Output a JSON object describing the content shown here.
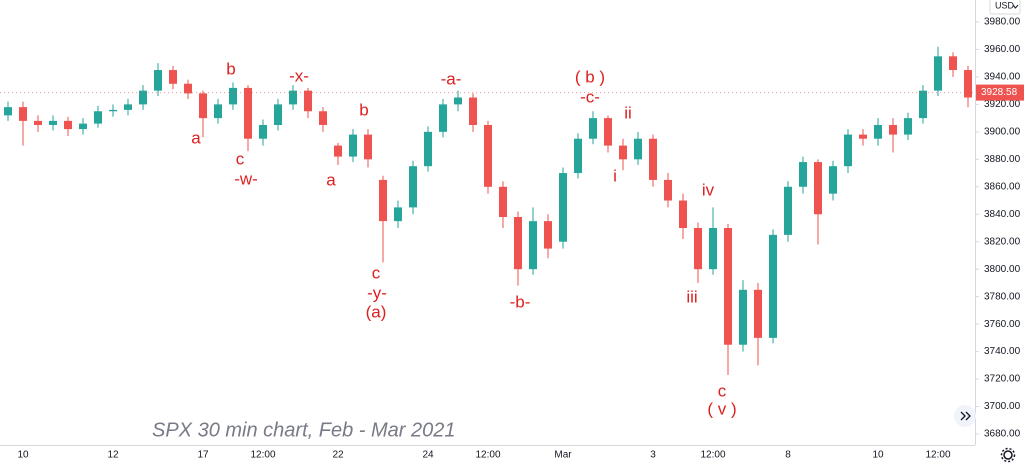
{
  "chart_data": {
    "type": "candlestick",
    "caption": "SPX 30 min chart, Feb - Mar 2021",
    "currency": "USD",
    "last_price": 3928.58,
    "up_color": "#26a69a",
    "down_color": "#ef5350",
    "categories": [
      null,
      "10",
      null,
      null,
      null,
      null,
      null,
      "12",
      null,
      null,
      null,
      null,
      null,
      "17",
      null,
      null,
      null,
      "12:00",
      null,
      null,
      null,
      null,
      "22",
      null,
      null,
      null,
      null,
      null,
      "24",
      null,
      null,
      null,
      "12:00",
      null,
      null,
      null,
      null,
      "Mar",
      null,
      null,
      null,
      null,
      null,
      "3",
      null,
      null,
      null,
      "12:00",
      null,
      null,
      null,
      null,
      "8",
      null,
      null,
      null,
      null,
      null,
      "10",
      null,
      null,
      null,
      "12:00",
      null,
      null
    ],
    "open": [
      3912,
      3918,
      3908,
      3905,
      3908,
      3902,
      3906,
      3915,
      3916,
      3920,
      3930,
      3945,
      3935,
      3928,
      3910,
      3920,
      3932,
      3895,
      3905,
      3920,
      3930,
      3915,
      3890,
      3882,
      3898,
      3865,
      3835,
      3845,
      3875,
      3900,
      3920,
      3925,
      3905,
      3860,
      3838,
      3800,
      3835,
      3820,
      3870,
      3895,
      3910,
      3890,
      3880,
      3895,
      3865,
      3850,
      3830,
      3800,
      3830,
      3745,
      3785,
      3750,
      3825,
      3860,
      3878,
      3855,
      3875,
      3898,
      3895,
      3905,
      3898,
      3910,
      3930,
      3955,
      3945
    ],
    "high": [
      3922,
      3922,
      3912,
      3912,
      3911,
      3910,
      3919,
      3920,
      3924,
      3934,
      3950,
      3948,
      3938,
      3930,
      3924,
      3936,
      3934,
      3909,
      3924,
      3934,
      3932,
      3918,
      3892,
      3902,
      3902,
      3868,
      3850,
      3879,
      3904,
      3924,
      3930,
      3928,
      3908,
      3864,
      3842,
      3845,
      3840,
      3874,
      3899,
      3915,
      3912,
      3895,
      3900,
      3898,
      3870,
      3855,
      3834,
      3845,
      3833,
      3792,
      3790,
      3829,
      3864,
      3882,
      3880,
      3879,
      3902,
      3902,
      3910,
      3910,
      3914,
      3934,
      3962,
      3958,
      3948
    ],
    "low": [
      3908,
      3890,
      3900,
      3901,
      3897,
      3898,
      3903,
      3911,
      3912,
      3916,
      3926,
      3931,
      3924,
      3896,
      3906,
      3916,
      3886,
      3890,
      3901,
      3916,
      3910,
      3900,
      3876,
      3878,
      3874,
      3805,
      3830,
      3840,
      3871,
      3896,
      3915,
      3900,
      3855,
      3830,
      3788,
      3796,
      3808,
      3815,
      3866,
      3891,
      3885,
      3872,
      3876,
      3860,
      3845,
      3822,
      3790,
      3796,
      3723,
      3740,
      3730,
      3746,
      3820,
      3855,
      3818,
      3850,
      3870,
      3890,
      3890,
      3885,
      3894,
      3906,
      3926,
      3940,
      3918
    ],
    "close": [
      3918,
      3908,
      3905,
      3908,
      3902,
      3906,
      3915,
      3916,
      3920,
      3930,
      3945,
      3935,
      3928,
      3910,
      3920,
      3932,
      3895,
      3905,
      3920,
      3930,
      3915,
      3905,
      3882,
      3898,
      3880,
      3835,
      3845,
      3875,
      3900,
      3920,
      3925,
      3905,
      3860,
      3838,
      3800,
      3835,
      3815,
      3870,
      3895,
      3910,
      3890,
      3880,
      3895,
      3865,
      3850,
      3830,
      3800,
      3830,
      3745,
      3785,
      3750,
      3825,
      3860,
      3878,
      3840,
      3875,
      3898,
      3895,
      3905,
      3898,
      3910,
      3930,
      3955,
      3945,
      3925
    ],
    "ylim": [
      3672,
      3996
    ],
    "yticks": [
      {
        "value": 3680,
        "label": "3680.00"
      },
      {
        "value": 3700,
        "label": "3700.00"
      },
      {
        "value": 3720,
        "label": "3720.00"
      },
      {
        "value": 3740,
        "label": "3740.00"
      },
      {
        "value": 3760,
        "label": "3760.00"
      },
      {
        "value": 3780,
        "label": "3780.00"
      },
      {
        "value": 3800,
        "label": "3800.00"
      },
      {
        "value": 3820,
        "label": "3820.00"
      },
      {
        "value": 3840,
        "label": "3840.00"
      },
      {
        "value": 3860,
        "label": "3860.00"
      },
      {
        "value": 3880,
        "label": "3880.00"
      },
      {
        "value": 3900,
        "label": "3900.00"
      },
      {
        "value": 3920,
        "label": "3920.00"
      },
      {
        "value": 3940,
        "label": "3940.00"
      },
      {
        "value": 3960,
        "label": "3960.00"
      },
      {
        "value": 3980,
        "label": "3980.00"
      }
    ],
    "annotations": [
      "a",
      "b",
      "c",
      "-w-",
      "-x-",
      "a",
      "b",
      "c",
      "-y-",
      "(a)",
      "-a-",
      "( b )",
      "-c-",
      "ii",
      "i",
      "-b-",
      "iii",
      "iv",
      "c",
      "( v )"
    ]
  }
}
